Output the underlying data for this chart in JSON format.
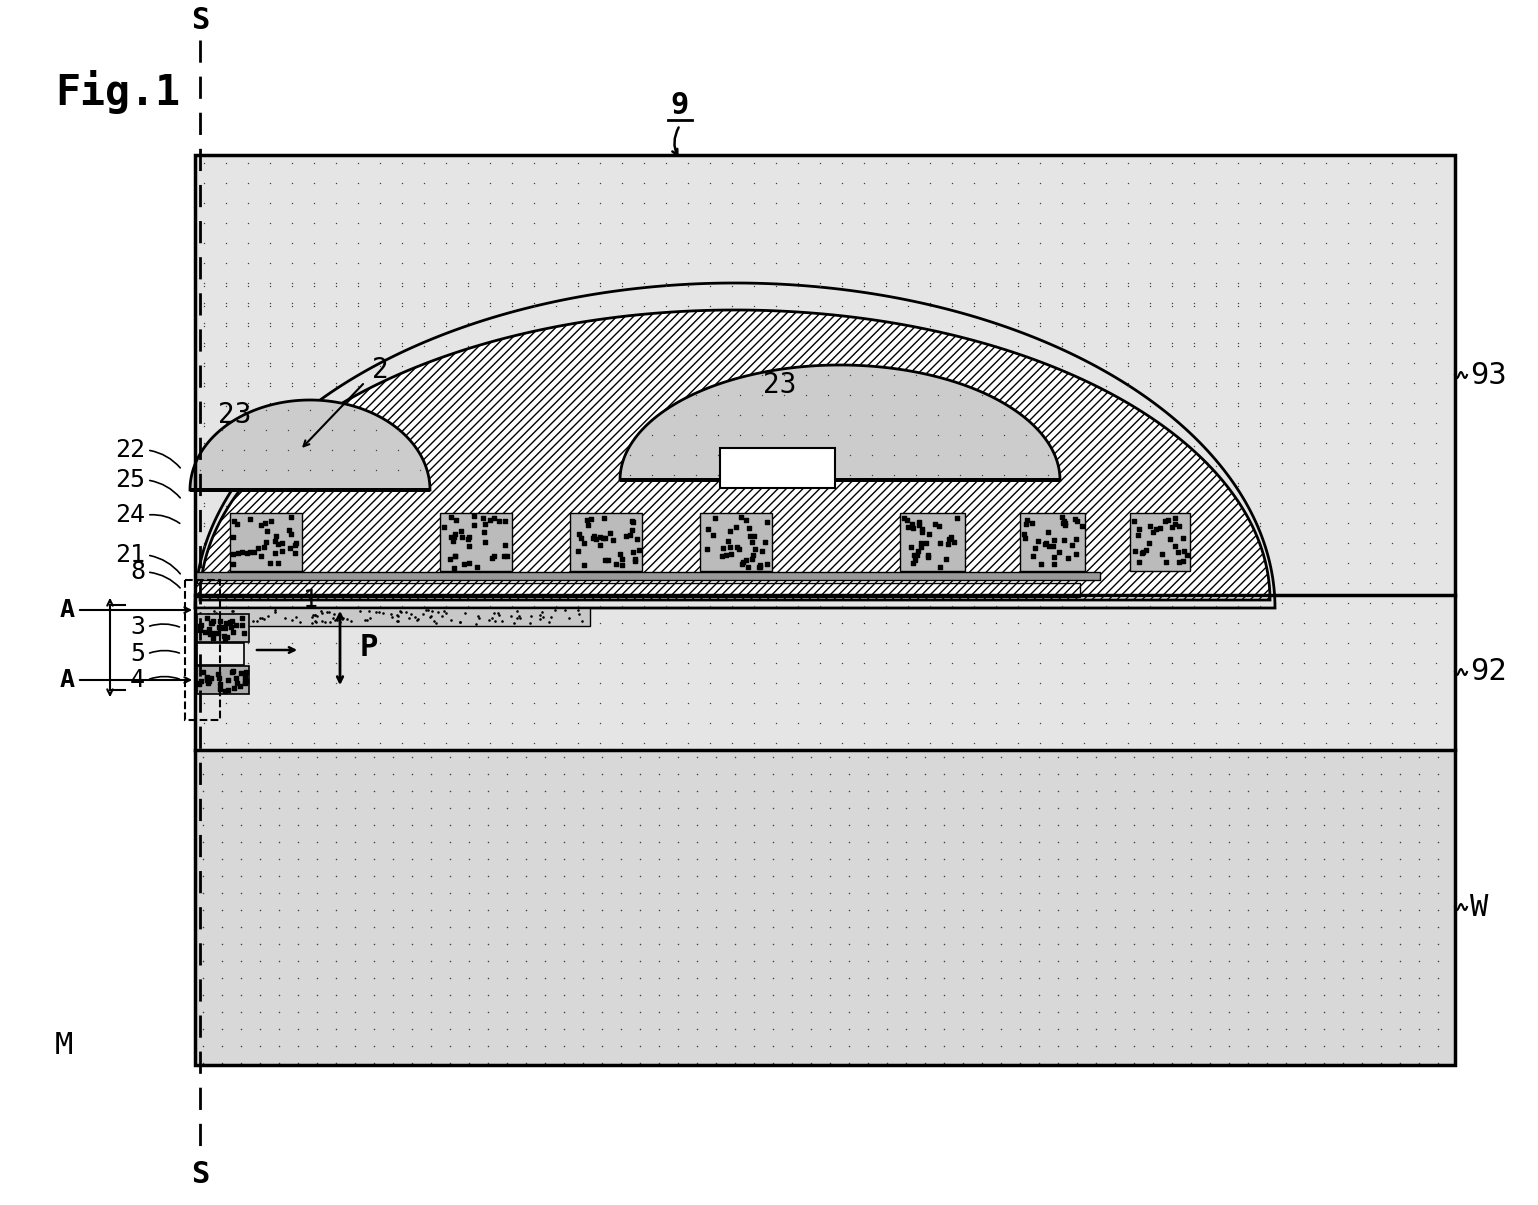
{
  "fig_width": 15.38,
  "fig_height": 12.05,
  "bg_color": "#ffffff",
  "labels": {
    "fig_title": "Fig.1",
    "S_top": "S",
    "S_bottom": "S",
    "label_9": "9",
    "label_93": "93",
    "label_92": "92",
    "label_W": "W",
    "label_M": "M",
    "label_22": "22",
    "label_25": "25",
    "label_24": "24",
    "label_21": "21",
    "label_8": "8",
    "label_A_top": "A",
    "label_3": "3",
    "label_5": "5",
    "label_4": "4",
    "label_A_bottom": "A",
    "label_2": "2",
    "label_23_left": "23",
    "label_23_right": "23",
    "label_1": "1",
    "label_P": "P"
  }
}
